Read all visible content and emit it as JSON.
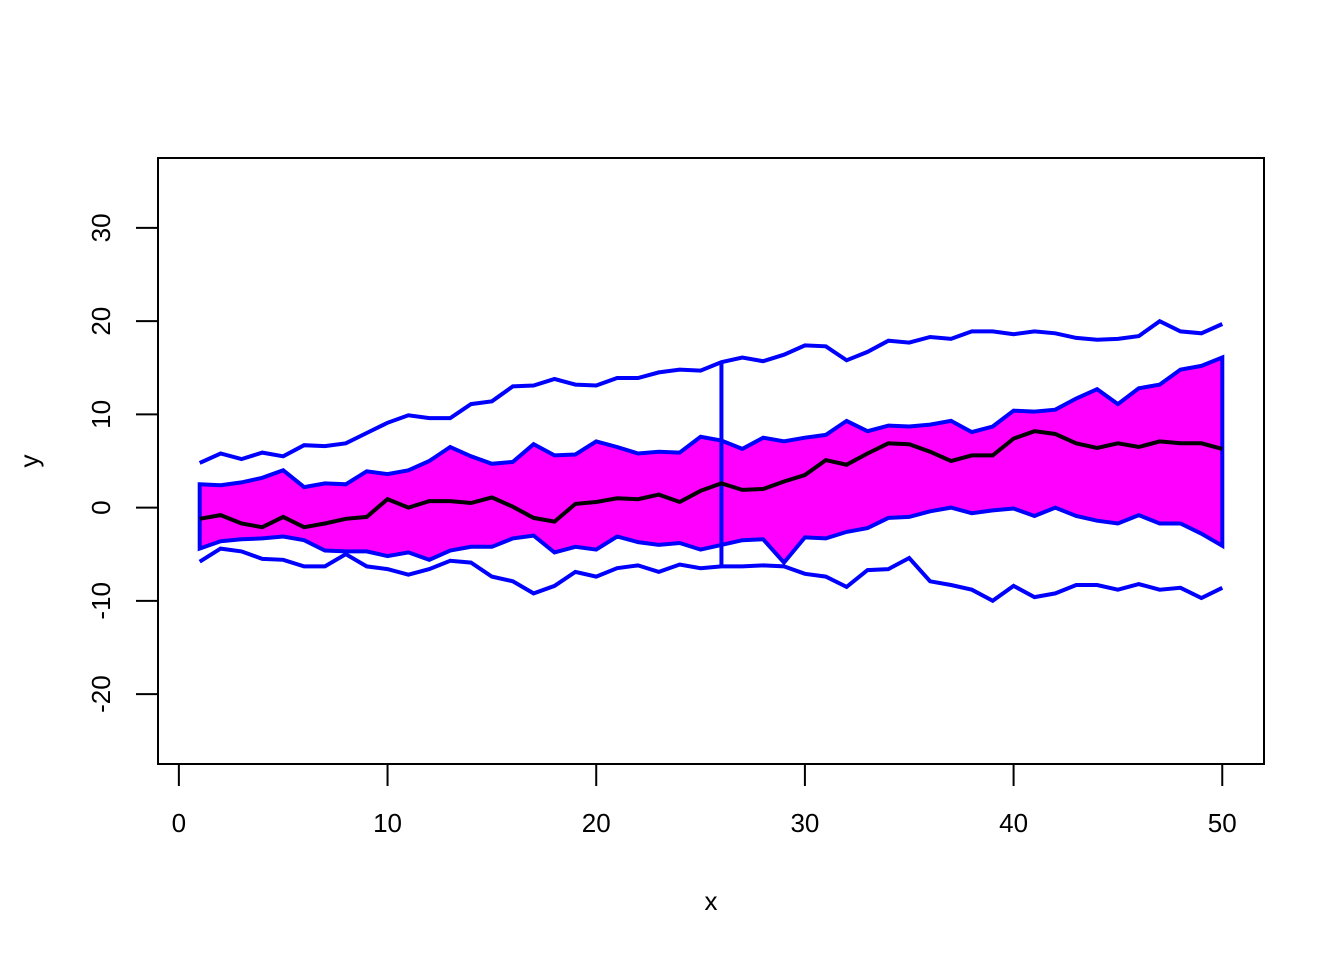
{
  "chart_data": {
    "type": "area",
    "title": "",
    "xlabel": "x",
    "ylabel": "y",
    "xlim": [
      -1,
      52
    ],
    "ylim": [
      -27.5,
      37.5
    ],
    "xticks": [
      0,
      10,
      20,
      30,
      40,
      50
    ],
    "yticks": [
      -20,
      -10,
      0,
      10,
      20,
      30
    ],
    "grid": false,
    "legend": "none",
    "colors": {
      "band_fill": "#ff00ff",
      "band_edge": "#0000ff",
      "outer": "#0000ff",
      "mean": "#000000"
    },
    "x": [
      1,
      2,
      3,
      4,
      5,
      6,
      7,
      8,
      9,
      10,
      11,
      12,
      13,
      14,
      15,
      16,
      17,
      18,
      19,
      20,
      21,
      22,
      23,
      24,
      25,
      26,
      27,
      28,
      29,
      30,
      31,
      32,
      33,
      34,
      35,
      36,
      37,
      38,
      39,
      40,
      41,
      42,
      43,
      44,
      45,
      46,
      47,
      48,
      49,
      50
    ],
    "series": [
      {
        "role": "outer-upper",
        "values": [
          4.8,
          5.8,
          5.2,
          5.9,
          5.5,
          6.7,
          6.6,
          6.9,
          8.0,
          9.1,
          9.9,
          9.6,
          9.6,
          11.1,
          11.4,
          13.0,
          13.1,
          13.8,
          13.2,
          13.1,
          13.9,
          13.9,
          14.5,
          14.8,
          14.7,
          15.6,
          16.1,
          15.7,
          16.4,
          17.4,
          17.3,
          15.8,
          16.7,
          17.9,
          17.7,
          18.3,
          18.1,
          18.9,
          18.9,
          18.6,
          18.9,
          18.7,
          18.2,
          18.0,
          18.1,
          18.4,
          20.0,
          18.9,
          18.7,
          19.7
        ]
      },
      {
        "role": "band-upper",
        "values": [
          2.5,
          2.4,
          2.7,
          3.2,
          4.0,
          2.2,
          2.6,
          2.5,
          3.9,
          3.6,
          4.0,
          5.0,
          6.5,
          5.5,
          4.7,
          4.9,
          6.8,
          5.6,
          5.7,
          7.1,
          6.5,
          5.8,
          6.0,
          5.9,
          7.6,
          7.2,
          6.3,
          7.5,
          7.1,
          7.5,
          7.8,
          9.3,
          8.2,
          8.8,
          8.7,
          8.9,
          9.3,
          8.1,
          8.7,
          10.4,
          10.3,
          10.5,
          11.7,
          12.7,
          11.1,
          12.8,
          13.2,
          14.8,
          15.2,
          16.1
        ]
      },
      {
        "role": "mean",
        "values": [
          -1.2,
          -0.8,
          -1.7,
          -2.1,
          -1.0,
          -2.1,
          -1.7,
          -1.2,
          -1.0,
          0.9,
          0.0,
          0.7,
          0.7,
          0.5,
          1.1,
          0.1,
          -1.1,
          -1.5,
          0.4,
          0.6,
          1.0,
          0.9,
          1.4,
          0.6,
          1.8,
          2.6,
          1.9,
          2.0,
          2.8,
          3.5,
          5.1,
          4.6,
          5.8,
          6.9,
          6.8,
          6.0,
          5.0,
          5.6,
          5.6,
          7.4,
          8.2,
          7.9,
          6.9,
          6.4,
          6.9,
          6.5,
          7.1,
          6.9,
          6.9,
          6.3
        ]
      },
      {
        "role": "band-lower",
        "values": [
          -4.4,
          -3.6,
          -3.4,
          -3.3,
          -3.1,
          -3.5,
          -4.6,
          -4.7,
          -4.7,
          -5.2,
          -4.8,
          -5.6,
          -4.6,
          -4.2,
          -4.2,
          -3.3,
          -3.0,
          -4.8,
          -4.2,
          -4.5,
          -3.1,
          -3.7,
          -4.0,
          -3.8,
          -4.5,
          -4.0,
          -3.5,
          -3.4,
          -5.9,
          -3.2,
          -3.3,
          -2.6,
          -2.2,
          -1.1,
          -1.0,
          -0.4,
          0.0,
          -0.6,
          -0.3,
          -0.1,
          -0.9,
          0.0,
          -0.9,
          -1.4,
          -1.7,
          -0.8,
          -1.7,
          -1.7,
          -2.8,
          -4.1
        ]
      },
      {
        "role": "outer-lower",
        "values": [
          -5.8,
          -4.4,
          -4.7,
          -5.5,
          -5.6,
          -6.3,
          -6.3,
          -5.0,
          -6.3,
          -6.6,
          -7.2,
          -6.6,
          -5.7,
          -5.9,
          -7.4,
          -7.9,
          -9.2,
          -8.4,
          -6.9,
          -7.4,
          -6.5,
          -6.2,
          -6.9,
          -6.1,
          -6.5,
          -6.3,
          -6.3,
          -6.2,
          -6.3,
          -7.1,
          -7.4,
          -8.5,
          -6.7,
          -6.6,
          -5.4,
          -7.9,
          -8.3,
          -8.8,
          -10.0,
          -8.4,
          -9.6,
          -9.2,
          -8.3,
          -8.3,
          -8.8,
          -8.2,
          -8.8,
          -8.6,
          -9.7,
          -8.6
        ]
      }
    ],
    "annotations": [
      {
        "type": "vertical-segment",
        "x": 26,
        "y_from": -6.3,
        "y_to": 15.6
      }
    ]
  }
}
